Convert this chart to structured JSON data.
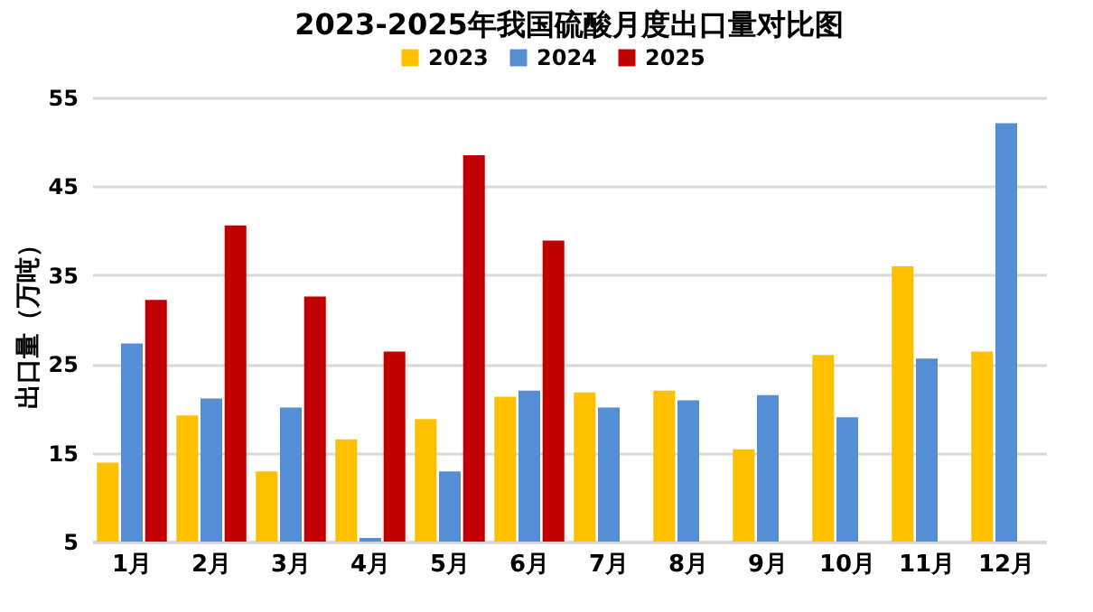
{
  "chart_data": {
    "type": "bar",
    "title": "2023-2025年我国硫酸月度出口量对比图",
    "ylabel": "出口量（万吨）",
    "categories": [
      "1月",
      "2月",
      "3月",
      "4月",
      "5月",
      "6月",
      "7月",
      "8月",
      "9月",
      "10月",
      "11月",
      "12月"
    ],
    "series": [
      {
        "name": "2023",
        "color": "#ffc000",
        "values": [
          13.9,
          19.2,
          12.9,
          16.5,
          18.8,
          21.3,
          21.8,
          22.0,
          15.4,
          26.0,
          36.0,
          26.4
        ]
      },
      {
        "name": "2024",
        "color": "#558ed5",
        "values": [
          27.3,
          21.1,
          20.1,
          5.4,
          12.9,
          22.0,
          20.1,
          20.9,
          21.5,
          19.0,
          25.6,
          52.1
        ]
      },
      {
        "name": "2025",
        "color": "#c00000",
        "values": [
          32.2,
          40.6,
          32.6,
          26.4,
          48.5,
          38.9,
          null,
          null,
          null,
          null,
          null,
          null
        ]
      }
    ],
    "ylim": [
      5,
      55
    ],
    "yticks": [
      5,
      15,
      25,
      35,
      45,
      55
    ],
    "grid": "y",
    "legend": "top"
  }
}
